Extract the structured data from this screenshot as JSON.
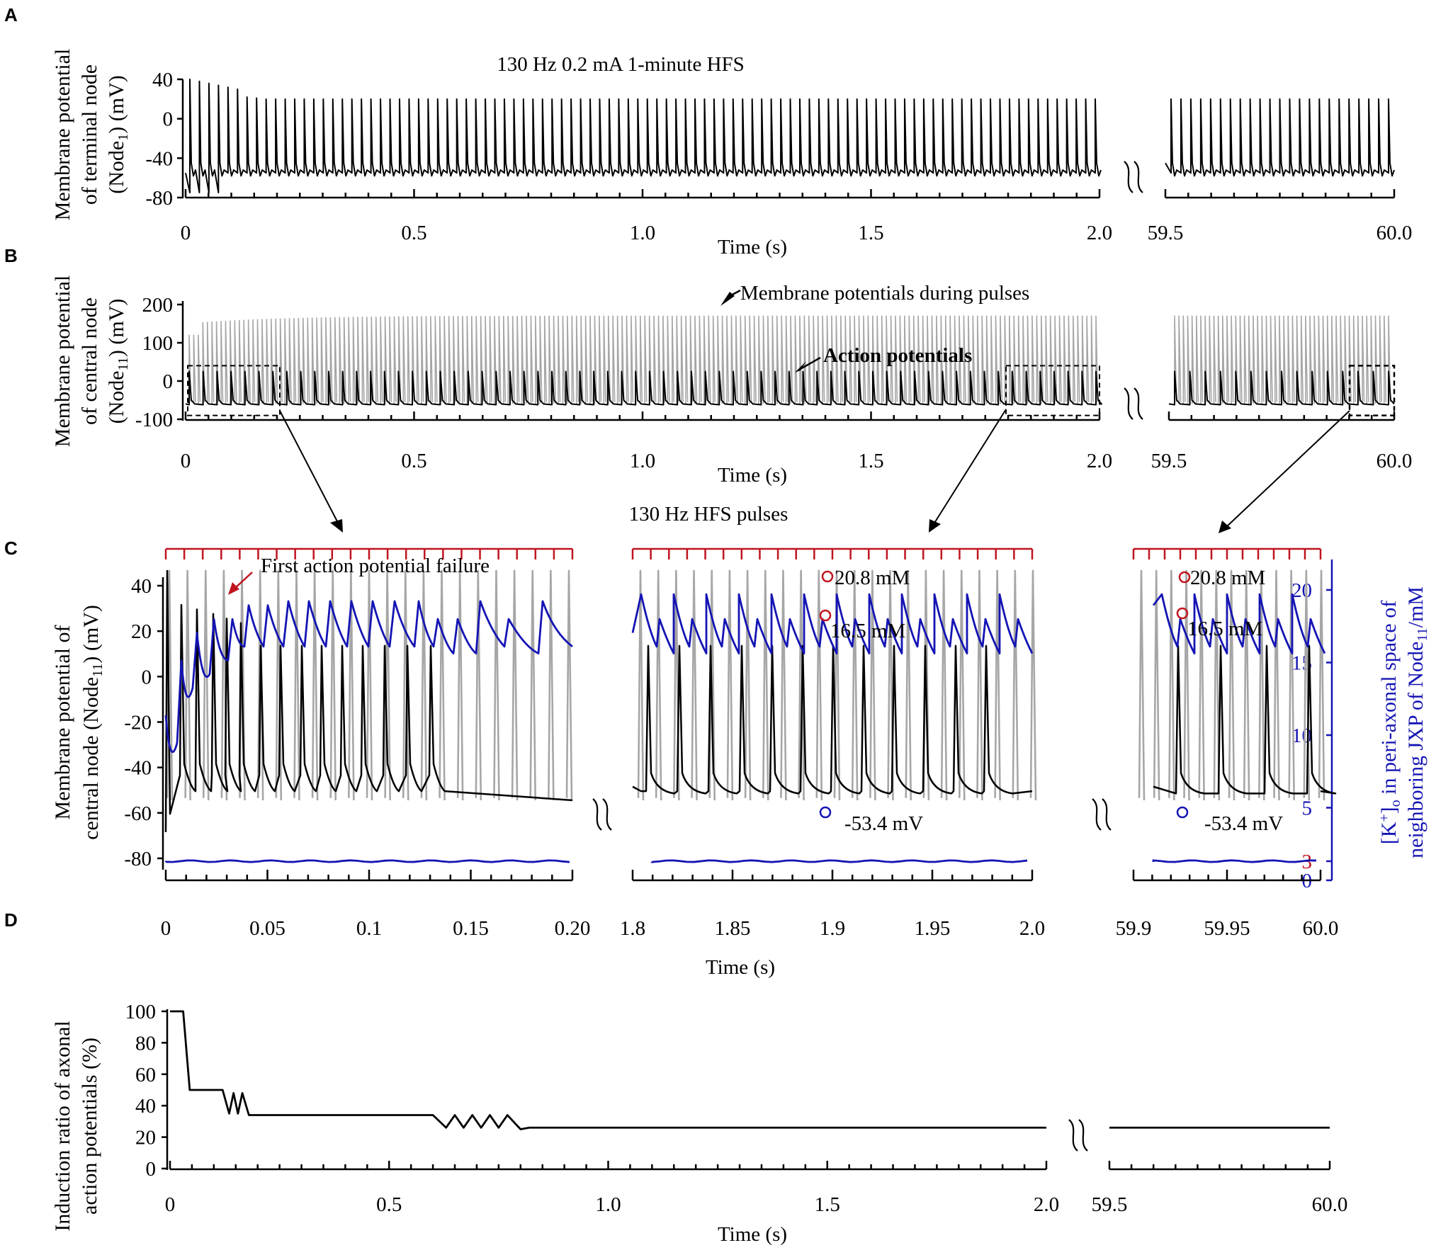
{
  "panel_labels": [
    "A",
    "B",
    "C",
    "D"
  ],
  "colors": {
    "black": "#000000",
    "gray": "#a6a6a6",
    "blue": "#1414b4",
    "red": "#c0141e"
  },
  "chart_data": [
    {
      "panel": "A",
      "type": "line",
      "title": "130 Hz 0.2 mA 1-minute HFS",
      "ylabel_lines": [
        "Membrane potential",
        "of terminal node",
        "(Node",
        "1",
        ") (mV)"
      ],
      "xlabel": "Time (s)",
      "ylim": [
        -80,
        40
      ],
      "yticks": [
        "40",
        "0",
        "-40",
        "-80"
      ],
      "ytick_values": [
        40,
        0,
        -40,
        -80
      ],
      "xlim_left": [
        0,
        2.0
      ],
      "xlim_right": [
        59.5,
        60.0
      ],
      "xticks_left": [
        "0",
        "0.5",
        "1.0",
        "1.5",
        "2.0"
      ],
      "xticks_right": [
        "59.5",
        "60.0"
      ],
      "series": [
        {
          "name": "Membrane potential (Node1)",
          "color": "#000000",
          "spike_peak_mV": 20,
          "baseline_mV": -55
        }
      ]
    },
    {
      "panel": "B",
      "type": "line",
      "ylabel_lines": [
        "Membrane potential",
        "of central node",
        "(Node",
        "11",
        ") (mV)"
      ],
      "xlabel": "Time (s)",
      "ylim": [
        -100,
        200
      ],
      "yticks": [
        "200",
        "100",
        "0",
        "-100"
      ],
      "ytick_values": [
        200,
        100,
        0,
        -100
      ],
      "xlim_left": [
        0,
        2.0
      ],
      "xlim_right": [
        59.5,
        60.0
      ],
      "xticks_left": [
        "0",
        "0.5",
        "1.0",
        "1.5",
        "2.0"
      ],
      "xticks_right": [
        "59.5",
        "60.0"
      ],
      "annotations": [
        "Membrane potentials during pulses",
        "Action potentials"
      ],
      "series": [
        {
          "name": "Membrane potentials during pulses",
          "color": "#a6a6a6",
          "peak_mV": 170
        },
        {
          "name": "Action potentials",
          "color": "#000000",
          "peak_mV": 25,
          "baseline_mV": -60
        }
      ]
    },
    {
      "panel": "C",
      "type": "line",
      "title": "130 Hz HFS pulses",
      "ylabel_lines": [
        "Membrane potential of",
        "central node (Node",
        "11",
        ") (mV)"
      ],
      "y2label_lines": [
        "[K",
        "+",
        "]",
        "o",
        " in peri-axonal space of",
        "neighboring JXP of Node",
        "11",
        "/mM"
      ],
      "xlabel": "Time (s)",
      "ylim": [
        -80,
        40
      ],
      "yticks": [
        "40",
        "20",
        "0",
        "-20",
        "-40",
        "-60",
        "-80"
      ],
      "ytick_values": [
        40,
        20,
        0,
        -20,
        -40,
        -60,
        -80
      ],
      "y2lim": [
        0,
        20
      ],
      "y2ticks": [
        "20",
        "15",
        "10",
        "5",
        "3",
        "0"
      ],
      "y2tick_values": [
        20,
        15,
        10,
        5,
        3,
        0
      ],
      "segments": [
        {
          "xlim": [
            0,
            0.2
          ],
          "xticks": [
            "0",
            "0.05",
            "0.1",
            "0.15",
            "0.20"
          ],
          "xtick_values": [
            0,
            0.05,
            0.1,
            0.15,
            0.2
          ]
        },
        {
          "xlim": [
            1.8,
            2.0
          ],
          "xticks": [
            "1.8",
            "1.85",
            "1.9",
            "1.95",
            "2.0"
          ],
          "xtick_values": [
            1.8,
            1.85,
            1.9,
            1.95,
            2.0
          ]
        },
        {
          "xlim": [
            59.9,
            60.0
          ],
          "xticks": [
            "59.9",
            "59.95",
            "60.0"
          ],
          "xtick_values": [
            59.9,
            59.95,
            60.0
          ]
        }
      ],
      "annotations": {
        "failure": "First action potential failure",
        "k_max": "20.8 mM",
        "k_min": "16.5 mM",
        "v_min": "-53.4 mV"
      },
      "series": [
        {
          "name": "Membrane potentials during pulses",
          "color": "#a6a6a6"
        },
        {
          "name": "Action potentials",
          "color": "#000000",
          "ap_peak_mV": 30,
          "baseline_mV": -53.4
        },
        {
          "name": "[K+]o",
          "color": "#1414b4",
          "axis": "right",
          "max_mM": 20.8,
          "min_mM": 16.5,
          "baseline_mM": 3
        }
      ]
    },
    {
      "panel": "D",
      "type": "line",
      "ylabel_lines": [
        "Induction ratio of axonal",
        "action potentials (%)"
      ],
      "xlabel": "Time (s)",
      "ylim": [
        0,
        100
      ],
      "yticks": [
        "100",
        "80",
        "60",
        "40",
        "20",
        "0"
      ],
      "ytick_values": [
        100,
        80,
        60,
        40,
        20,
        0
      ],
      "xlim_left": [
        0,
        2.0
      ],
      "xlim_right": [
        59.5,
        60.0
      ],
      "xticks_left": [
        "0",
        "0.5",
        "1.0",
        "1.5",
        "2.0"
      ],
      "xticks_right": [
        "59.5",
        "60.0"
      ],
      "series": [
        {
          "name": "Induction ratio",
          "color": "#000000",
          "x": [
            0,
            0.03,
            0.045,
            0.05,
            0.12,
            0.135,
            0.145,
            0.155,
            0.165,
            0.18,
            0.2,
            0.6,
            0.63,
            0.65,
            0.67,
            0.69,
            0.71,
            0.73,
            0.75,
            0.77,
            0.8,
            0.82,
            2.0
          ],
          "y": [
            100,
            100,
            50,
            50,
            50,
            35,
            48,
            35,
            48,
            34,
            34,
            34,
            26,
            34,
            26,
            34,
            26,
            34,
            26,
            34,
            25,
            26,
            26
          ]
        }
      ]
    }
  ]
}
